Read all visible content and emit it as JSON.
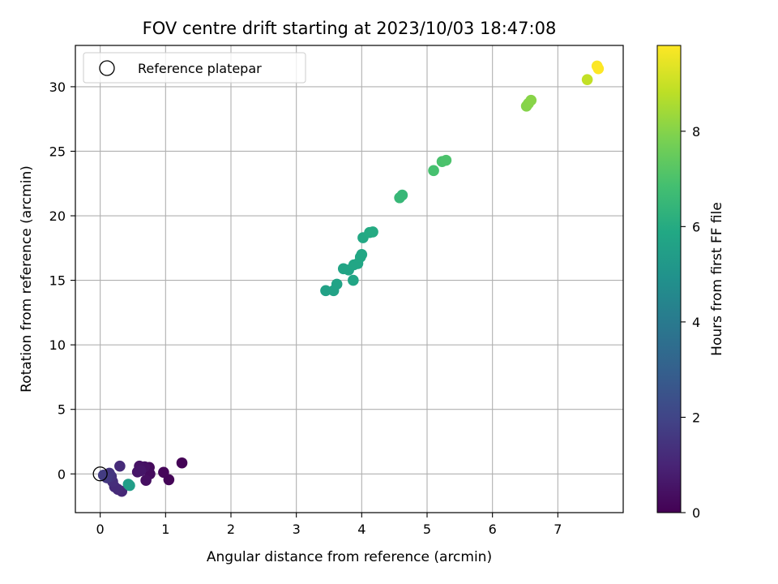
{
  "chart_data": {
    "type": "scatter",
    "title": "FOV centre drift starting at 2023/10/03 18:47:08",
    "xlabel": "Angular distance from reference (arcmin)",
    "ylabel": "Rotation from reference (arcmin)",
    "xlim": [
      -0.38,
      8.0
    ],
    "ylim": [
      -3.0,
      33.2
    ],
    "xticks": [
      0,
      1,
      2,
      3,
      4,
      5,
      6,
      7
    ],
    "yticks": [
      0,
      5,
      10,
      15,
      20,
      25,
      30
    ],
    "grid": true,
    "legend": {
      "position": "top-left",
      "entries": [
        "Reference platepar"
      ]
    },
    "reference_point": {
      "x": 0,
      "y": 0
    },
    "colorbar": {
      "label": "Hours from first FF file",
      "colormap": "viridis",
      "range": [
        0,
        9.8
      ],
      "ticks": [
        0,
        2,
        4,
        6,
        8
      ]
    },
    "points": [
      {
        "x": 1.25,
        "y": 0.85,
        "c": 0.05
      },
      {
        "x": 1.05,
        "y": -0.45,
        "c": 0.1
      },
      {
        "x": 0.97,
        "y": 0.12,
        "c": 0.15
      },
      {
        "x": 0.75,
        "y": 0.5,
        "c": 0.25
      },
      {
        "x": 0.76,
        "y": 0.0,
        "c": 0.3
      },
      {
        "x": 0.7,
        "y": -0.5,
        "c": 0.4
      },
      {
        "x": 0.68,
        "y": 0.55,
        "c": 0.45
      },
      {
        "x": 0.6,
        "y": 0.6,
        "c": 0.5
      },
      {
        "x": 0.57,
        "y": 0.15,
        "c": 0.55
      },
      {
        "x": 0.62,
        "y": 0.25,
        "c": 0.6
      },
      {
        "x": 0.33,
        "y": -1.35,
        "c": 1.1
      },
      {
        "x": 0.27,
        "y": -1.2,
        "c": 1.15
      },
      {
        "x": 0.22,
        "y": -1.0,
        "c": 1.2
      },
      {
        "x": 0.3,
        "y": 0.6,
        "c": 1.2
      },
      {
        "x": 0.19,
        "y": -0.6,
        "c": 1.3
      },
      {
        "x": 0.17,
        "y": -0.2,
        "c": 1.4
      },
      {
        "x": 0.14,
        "y": 0.05,
        "c": 1.5
      },
      {
        "x": 0.1,
        "y": -0.3,
        "c": 1.6
      },
      {
        "x": 0.05,
        "y": -0.1,
        "c": 1.7
      },
      {
        "x": 0.43,
        "y": -0.8,
        "c": 5.4
      },
      {
        "x": 0.45,
        "y": -0.9,
        "c": 5.45
      },
      {
        "x": 3.45,
        "y": 14.2,
        "c": 5.6
      },
      {
        "x": 3.57,
        "y": 14.2,
        "c": 5.62
      },
      {
        "x": 3.62,
        "y": 14.7,
        "c": 5.65
      },
      {
        "x": 3.72,
        "y": 15.9,
        "c": 5.7
      },
      {
        "x": 3.8,
        "y": 15.8,
        "c": 5.72
      },
      {
        "x": 3.87,
        "y": 15.0,
        "c": 5.75
      },
      {
        "x": 3.88,
        "y": 16.2,
        "c": 5.78
      },
      {
        "x": 3.94,
        "y": 16.3,
        "c": 5.8
      },
      {
        "x": 3.98,
        "y": 16.8,
        "c": 5.83
      },
      {
        "x": 4.0,
        "y": 17.0,
        "c": 5.85
      },
      {
        "x": 4.02,
        "y": 18.3,
        "c": 5.9
      },
      {
        "x": 4.12,
        "y": 18.7,
        "c": 5.95
      },
      {
        "x": 4.17,
        "y": 18.75,
        "c": 5.98
      },
      {
        "x": 4.58,
        "y": 21.4,
        "c": 6.5
      },
      {
        "x": 4.62,
        "y": 21.6,
        "c": 6.52
      },
      {
        "x": 5.1,
        "y": 23.5,
        "c": 6.9
      },
      {
        "x": 5.23,
        "y": 24.2,
        "c": 6.95
      },
      {
        "x": 5.29,
        "y": 24.3,
        "c": 7.0
      },
      {
        "x": 6.52,
        "y": 28.5,
        "c": 8.0
      },
      {
        "x": 6.55,
        "y": 28.7,
        "c": 8.02
      },
      {
        "x": 6.59,
        "y": 28.95,
        "c": 8.05
      },
      {
        "x": 7.45,
        "y": 30.55,
        "c": 8.9
      },
      {
        "x": 7.6,
        "y": 31.6,
        "c": 9.75
      },
      {
        "x": 7.62,
        "y": 31.4,
        "c": 9.8
      }
    ]
  }
}
